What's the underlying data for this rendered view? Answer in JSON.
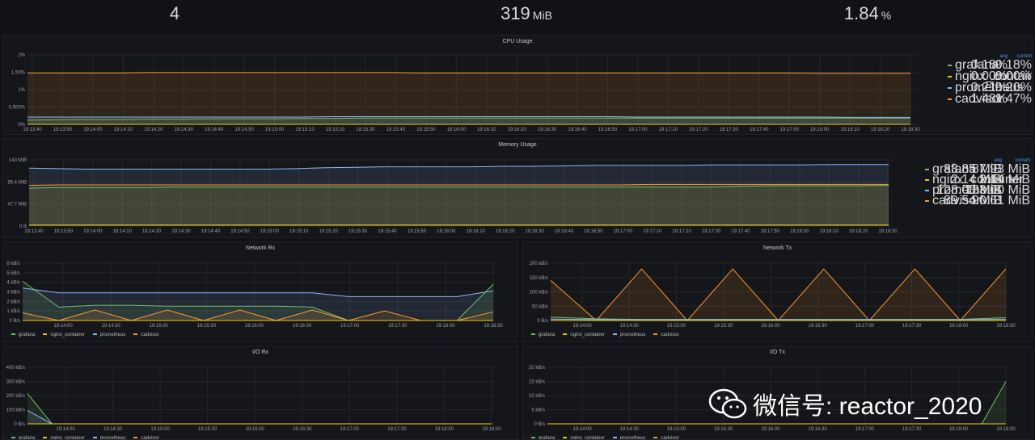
{
  "stats": [
    {
      "value": "4",
      "unit": ""
    },
    {
      "value": "319",
      "unit": "MiB"
    },
    {
      "value": "1.84",
      "unit": "%"
    }
  ],
  "colors": {
    "grafana": "#73bf69",
    "nginx": "#f2cc0c",
    "prometheus": "#8ab8ff",
    "cadvisor": "#ff9830",
    "grid": "#23262b",
    "axis_text": "#9fa1a4"
  },
  "panels": {
    "cpu": {
      "title": "CPU Usage",
      "legend_header": {
        "avg": "avg",
        "current": "current"
      },
      "legend": [
        {
          "name": "grafana",
          "avg": "0.18%",
          "current": "0.18%",
          "color": "#73bf69"
        },
        {
          "name": "nginx_container",
          "avg": "0.00%",
          "current": "0.00%",
          "color": "#f2cc0c"
        },
        {
          "name": "prometheus",
          "avg": "0.21%",
          "current": "0.20%",
          "color": "#8ab8ff"
        },
        {
          "name": "cadvisor",
          "avg": "1.48%",
          "current": "1.47%",
          "color": "#ff9830"
        }
      ],
      "y_ticks": [
        "2%",
        "1.50%",
        "1%",
        "0.500%",
        "0%"
      ],
      "x_ticks": [
        "19:13:40",
        "19:13:50",
        "19:14:00",
        "19:14:10",
        "19:14:20",
        "19:14:30",
        "19:14:40",
        "19:14:50",
        "19:15:00",
        "19:15:10",
        "19:15:20",
        "19:15:30",
        "19:15:40",
        "19:15:50",
        "19:16:00",
        "19:16:10",
        "19:16:20",
        "19:16:30",
        "19:16:40",
        "19:16:50",
        "19:17:00",
        "19:17:10",
        "19:17:20",
        "19:17:30",
        "19:17:40",
        "19:17:50",
        "19:18:00",
        "19:18:10",
        "19:18:20",
        "19:18:30"
      ],
      "y_max": 2,
      "series": [
        {
          "name": "cadvisor",
          "color": "#ff9830",
          "values": [
            1.48,
            1.48,
            1.48,
            1.48,
            1.49,
            1.49,
            1.49,
            1.49,
            1.49,
            1.49,
            1.49,
            1.49,
            1.49,
            1.48,
            1.48,
            1.48,
            1.48,
            1.48,
            1.48,
            1.48,
            1.48,
            1.48,
            1.48,
            1.48,
            1.48,
            1.48,
            1.47,
            1.47,
            1.47,
            1.47
          ]
        },
        {
          "name": "prometheus",
          "color": "#8ab8ff",
          "values": [
            0.21,
            0.21,
            0.21,
            0.21,
            0.21,
            0.21,
            0.21,
            0.21,
            0.21,
            0.21,
            0.22,
            0.22,
            0.22,
            0.22,
            0.22,
            0.22,
            0.22,
            0.22,
            0.22,
            0.22,
            0.21,
            0.21,
            0.21,
            0.21,
            0.21,
            0.21,
            0.21,
            0.2,
            0.2,
            0.2
          ]
        },
        {
          "name": "grafana",
          "color": "#73bf69",
          "values": [
            0.12,
            0.13,
            0.14,
            0.14,
            0.15,
            0.15,
            0.16,
            0.16,
            0.16,
            0.17,
            0.17,
            0.18,
            0.18,
            0.18,
            0.18,
            0.18,
            0.18,
            0.18,
            0.18,
            0.18,
            0.18,
            0.18,
            0.18,
            0.18,
            0.18,
            0.18,
            0.18,
            0.18,
            0.18,
            0.18
          ]
        },
        {
          "name": "nginx_container",
          "color": "#f2cc0c",
          "values": [
            0,
            0,
            0,
            0,
            0,
            0,
            0,
            0,
            0,
            0,
            0,
            0,
            0,
            0,
            0,
            0,
            0,
            0,
            0,
            0,
            0,
            0,
            0,
            0,
            0,
            0,
            0,
            0,
            0,
            0
          ]
        }
      ]
    },
    "memory": {
      "title": "Memory Usage",
      "legend_header": {
        "avg": "avg",
        "current": "current"
      },
      "legend": [
        {
          "name": "grafana",
          "avg": "83.85 MiB",
          "current": "87.93 MiB",
          "color": "#73bf69"
        },
        {
          "name": "nginx_container",
          "avg": "2.14 MiB",
          "current": "2.14 MiB",
          "color": "#f2cc0c"
        },
        {
          "name": "prometheus",
          "avg": "128.03 MiB",
          "current": "133.00 MiB",
          "color": "#8ab8ff"
        },
        {
          "name": "cadvisor",
          "avg": "89.54 MiB",
          "current": "90.61 MiB",
          "color": "#ff9830"
        }
      ],
      "y_ticks": [
        "143 MiB",
        "95.4 MiB",
        "47.7 MiB",
        "0 B"
      ],
      "x_ticks": [
        "19:13:40",
        "19:13:50",
        "19:14:00",
        "19:14:10",
        "19:14:20",
        "19:14:30",
        "19:14:40",
        "19:14:50",
        "19:15:00",
        "19:15:10",
        "19:15:20",
        "19:15:30",
        "19:15:40",
        "19:15:50",
        "19:16:00",
        "19:16:10",
        "19:16:20",
        "19:16:30",
        "19:16:40",
        "19:16:50",
        "19:17:00",
        "19:17:10",
        "19:17:20",
        "19:17:30",
        "19:17:40",
        "19:17:50",
        "19:18:00",
        "19:18:10",
        "19:18:20",
        "19:18:30"
      ],
      "y_max": 143,
      "series": [
        {
          "name": "prometheus",
          "color": "#8ab8ff",
          "values": [
            125,
            124,
            123,
            123,
            123,
            123,
            123,
            123,
            123,
            124,
            126,
            127,
            128,
            128,
            128,
            128,
            129,
            129,
            130,
            131,
            131,
            131,
            131,
            132,
            132,
            132,
            132,
            133,
            133,
            133
          ]
        },
        {
          "name": "cadvisor",
          "color": "#ff9830",
          "values": [
            88,
            89,
            89,
            89,
            89,
            89,
            89,
            89,
            89,
            89,
            89,
            89,
            89,
            89,
            89,
            89,
            89,
            89,
            89,
            89,
            89,
            90,
            90,
            90,
            90,
            90,
            90,
            90,
            90,
            90
          ]
        },
        {
          "name": "grafana",
          "color": "#73bf69",
          "values": [
            82,
            83,
            83,
            83,
            83,
            84,
            84,
            84,
            84,
            84,
            84,
            84,
            84,
            84,
            84,
            84,
            84,
            84,
            84,
            84,
            84,
            84,
            84,
            84,
            86,
            87,
            87,
            87,
            87,
            88
          ]
        },
        {
          "name": "nginx_container",
          "color": "#f2cc0c",
          "values": [
            2.14,
            2.14,
            2.14,
            2.14,
            2.14,
            2.14,
            2.14,
            2.14,
            2.14,
            2.14,
            2.14,
            2.14,
            2.14,
            2.14,
            2.14,
            2.14,
            2.14,
            2.14,
            2.14,
            2.14,
            2.14,
            2.14,
            2.14,
            2.14,
            2.14,
            2.14,
            2.14,
            2.14,
            2.14,
            2.14
          ]
        }
      ]
    },
    "netrx": {
      "title": "Network Rx",
      "legend": [
        {
          "name": "grafana",
          "color": "#73bf69"
        },
        {
          "name": "nginx_container",
          "color": "#f2cc0c"
        },
        {
          "name": "prometheus",
          "color": "#8ab8ff"
        },
        {
          "name": "cadvisor",
          "color": "#ff9830"
        }
      ],
      "y_ticks": [
        "6 kB/s",
        "5 kB/s",
        "4 kB/s",
        "3 kB/s",
        "2 kB/s",
        "1 kB/s",
        "0 B/s"
      ],
      "x_ticks": [
        "19:14:00",
        "19:14:30",
        "19:15:00",
        "19:15:30",
        "19:16:00",
        "19:16:30",
        "19:17:00",
        "19:17:30",
        "19:18:00",
        "19:18:30"
      ],
      "y_max": 6,
      "series": [
        {
          "name": "prometheus",
          "color": "#8ab8ff",
          "values": [
            3.4,
            2.9,
            2.9,
            2.9,
            2.9,
            2.9,
            2.9,
            2.9,
            2.9,
            2.5,
            2.5,
            2.5,
            2.5,
            3.1
          ]
        },
        {
          "name": "grafana",
          "color": "#73bf69",
          "values": [
            4.1,
            1.4,
            1.6,
            1.6,
            1.5,
            1.5,
            1.5,
            1.5,
            1.4,
            0,
            0,
            0,
            0,
            3.8
          ]
        },
        {
          "name": "cadvisor",
          "color": "#ff9830",
          "values": [
            0.8,
            0,
            1.1,
            0,
            1.1,
            0,
            1.1,
            0,
            1.1,
            0,
            1.0,
            0,
            0,
            0.9
          ]
        },
        {
          "name": "nginx_container",
          "color": "#f2cc0c",
          "values": [
            0,
            0,
            0,
            0,
            0,
            0,
            0,
            0,
            0,
            0,
            0,
            0,
            0,
            0
          ]
        }
      ]
    },
    "nettx": {
      "title": "Network Tx",
      "legend": [
        {
          "name": "grafana",
          "color": "#73bf69"
        },
        {
          "name": "nginx_container",
          "color": "#f2cc0c"
        },
        {
          "name": "prometheus",
          "color": "#8ab8ff"
        },
        {
          "name": "cadvisor",
          "color": "#ff9830"
        }
      ],
      "y_ticks": [
        "200 kB/s",
        "150 kB/s",
        "100 kB/s",
        "50 kB/s",
        "0 B/s"
      ],
      "x_ticks": [
        "19:14:00",
        "19:14:30",
        "19:15:00",
        "19:15:30",
        "19:16:00",
        "19:16:30",
        "19:17:00",
        "19:17:30",
        "19:18:00",
        "19:18:30"
      ],
      "y_max": 200,
      "series": [
        {
          "name": "cadvisor",
          "color": "#ff9830",
          "values": [
            140,
            0,
            180,
            0,
            180,
            0,
            180,
            0,
            180,
            0,
            180
          ]
        },
        {
          "name": "grafana",
          "color": "#73bf69",
          "values": [
            12,
            6,
            4,
            4,
            4,
            4,
            4,
            4,
            4,
            4,
            10
          ]
        },
        {
          "name": "prometheus",
          "color": "#8ab8ff",
          "values": [
            5,
            3,
            3,
            3,
            3,
            3,
            3,
            3,
            3,
            3,
            4
          ]
        },
        {
          "name": "nginx_container",
          "color": "#f2cc0c",
          "values": [
            0,
            0,
            0,
            0,
            0,
            0,
            0,
            0,
            0,
            0,
            0
          ]
        }
      ]
    },
    "iorx": {
      "title": "I/O Rx",
      "legend": [
        {
          "name": "grafana",
          "color": "#73bf69"
        },
        {
          "name": "nginx_container",
          "color": "#f2cc0c"
        },
        {
          "name": "prometheus",
          "color": "#8ab8ff"
        },
        {
          "name": "cadvisor",
          "color": "#ff9830"
        }
      ],
      "y_ticks": [
        "400 kB/s",
        "300 kB/s",
        "200 kB/s",
        "100 kB/s",
        "0 B/s"
      ],
      "x_ticks": [
        "19:14:00",
        "19:14:30",
        "19:15:00",
        "19:15:30",
        "19:16:00",
        "19:16:30",
        "19:17:00",
        "19:17:30",
        "19:18:00",
        "19:18:30"
      ],
      "y_max": 400,
      "series": [
        {
          "name": "grafana",
          "color": "#73bf69",
          "values": [
            215,
            0,
            0,
            0,
            0,
            0,
            0,
            0,
            0,
            0,
            0,
            0,
            0,
            0,
            0,
            0,
            0,
            0,
            0,
            0
          ]
        },
        {
          "name": "prometheus",
          "color": "#8ab8ff",
          "values": [
            95,
            0,
            0,
            0,
            0,
            0,
            0,
            0,
            0,
            0,
            0,
            0,
            0,
            0,
            0,
            0,
            0,
            0,
            0,
            0
          ]
        },
        {
          "name": "cadvisor",
          "color": "#ff9830",
          "values": [
            0,
            0,
            0,
            0,
            0,
            0,
            0,
            0,
            0,
            0,
            0,
            0,
            0,
            0,
            0,
            0,
            0,
            0,
            0,
            0
          ]
        },
        {
          "name": "nginx_container",
          "color": "#f2cc0c",
          "values": [
            0,
            0,
            0,
            0,
            0,
            0,
            0,
            0,
            0,
            0,
            0,
            0,
            0,
            0,
            0,
            0,
            0,
            0,
            0,
            0
          ]
        }
      ]
    },
    "iotx": {
      "title": "I/O Tx",
      "legend": [
        {
          "name": "grafana",
          "color": "#73bf69"
        },
        {
          "name": "nginx_container",
          "color": "#f2cc0c"
        },
        {
          "name": "prometheus",
          "color": "#8ab8ff"
        },
        {
          "name": "cadvisor",
          "color": "#ff9830"
        }
      ],
      "y_ticks": [
        "20 kB/s",
        "15 kB/s",
        "10 kB/s",
        "5 kB/s",
        "0 B/s"
      ],
      "x_ticks": [
        "19:14:00",
        "19:14:30",
        "19:15:00",
        "19:15:30",
        "19:16:00",
        "19:16:30",
        "19:17:00",
        "19:17:30",
        "19:18:00",
        "19:18:30"
      ],
      "y_max": 20,
      "series": [
        {
          "name": "grafana",
          "color": "#73bf69",
          "values": [
            0,
            0,
            0,
            0,
            0,
            0,
            0,
            0,
            0,
            0,
            0,
            0,
            0,
            0,
            0,
            0,
            0,
            0,
            0,
            15
          ]
        },
        {
          "name": "cadvisor",
          "color": "#ff9830",
          "values": [
            0,
            0,
            0,
            0,
            0,
            0,
            0,
            0,
            0,
            0,
            0,
            0,
            0,
            0,
            0,
            0,
            0,
            0,
            0,
            0
          ]
        },
        {
          "name": "prometheus",
          "color": "#8ab8ff",
          "values": [
            0,
            0,
            0,
            0,
            0,
            0,
            0,
            0,
            0,
            0,
            0,
            0,
            0,
            0,
            0,
            0,
            0,
            0,
            0,
            0
          ]
        },
        {
          "name": "nginx_container",
          "color": "#f2cc0c",
          "values": [
            0,
            0,
            0,
            0,
            0,
            0,
            0,
            0,
            0,
            0,
            0,
            0,
            0,
            0,
            0,
            0,
            0,
            0,
            0,
            0
          ]
        }
      ]
    }
  },
  "watermark": {
    "text": "微信号: reactor_2020"
  }
}
